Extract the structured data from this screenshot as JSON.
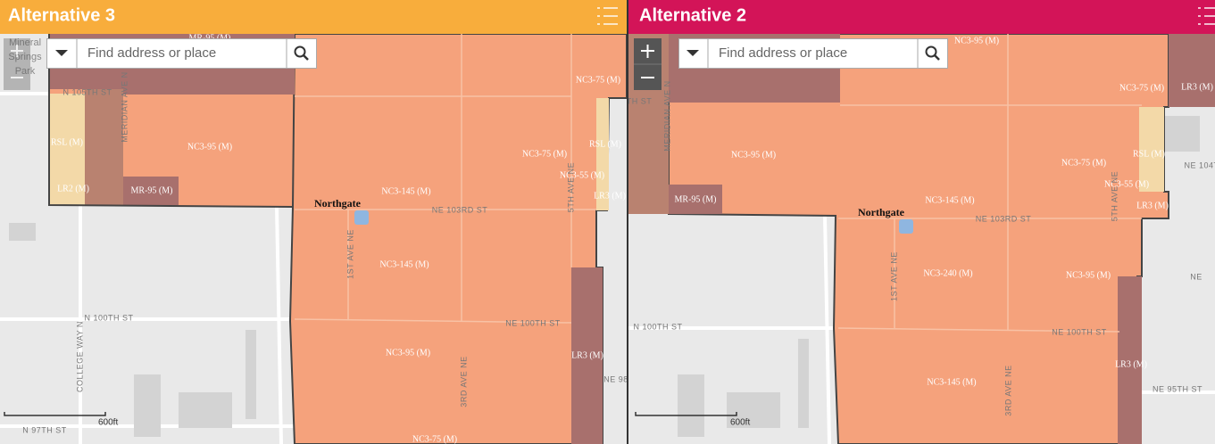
{
  "panels": [
    {
      "title": "Alternative 3",
      "search_placeholder": "Find address or place",
      "scale_label": "600ft",
      "labels": [
        "Mineral",
        "Springs",
        "Park",
        "MR-95 (M)",
        "N 105TH ST",
        "MERIDIAN AVE N",
        "RSL (M)",
        "NC3-95 (M)",
        "LR2 (M)",
        "MR-95 (M)",
        "NC3-75 (M)",
        "NC3-75 (M)",
        "RSL (M)",
        "NC3-55 (M)",
        "LR3 (M)",
        "NC3-145 (M)",
        "Northgate",
        "NE 103RD ST",
        "5TH AVE NE",
        "NC3-145 (M)",
        "1ST AVE NE",
        "N 100TH ST",
        "NE 100TH ST",
        "NC3-95 (M)",
        "LR3 (M)",
        "COLLEGE WAY N",
        "3RD AVE NE",
        "NE 98",
        "N 97TH ST",
        "NC3-75 (M)"
      ]
    },
    {
      "title": "Alternative 2",
      "search_placeholder": "Find address or place",
      "scale_label": "600ft",
      "labels": [
        "NC3-95 (M)",
        "NC3-75 (M)",
        "LR3 (M)",
        "TH ST",
        "MERIDIAN AVE N",
        "NC3-95 (M)",
        "NC3-75 (M)",
        "RSL (M)",
        "NE 104T",
        "NC3-55 (M)",
        "MR-95 (M)",
        "NC3-145 (M)",
        "LR3 (M)",
        "Northgate",
        "NE 103RD ST",
        "5TH AVE NE",
        "NC3-240 (M)",
        "NC3-95 (M)",
        "NE",
        "1ST AVE NE",
        "N 100TH ST",
        "NE 100TH ST",
        "LR3 (M)",
        "NC3-145 (M)",
        "NE 95TH ST",
        "3RD AVE NE"
      ]
    }
  ]
}
